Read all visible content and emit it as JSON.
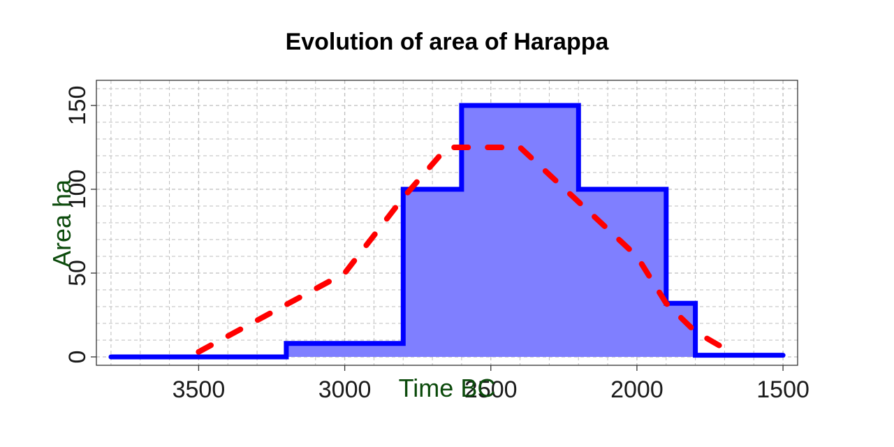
{
  "chart_data": {
    "type": "area",
    "title": "Evolution of area of Harappa",
    "xlabel": "Time BC",
    "ylabel": "Area ha",
    "x_reversed": true,
    "xlim": [
      3850,
      1450
    ],
    "ylim": [
      -5,
      165
    ],
    "xticks": [
      3500,
      3000,
      2500,
      2000,
      1500
    ],
    "yticks": [
      0,
      50,
      100,
      150
    ],
    "x_minor_step": 100,
    "y_minor_step": 10,
    "grid": true,
    "series": [
      {
        "style": "step-area",
        "color": "#0000ff",
        "fill": "#7f7fff",
        "x": [
          3800,
          3200,
          3200,
          2800,
          2800,
          2600,
          2600,
          2200,
          2200,
          1900,
          1900,
          1800,
          1800,
          1500
        ],
        "y": [
          0,
          0,
          8,
          8,
          100,
          100,
          150,
          150,
          100,
          100,
          32,
          32,
          1,
          1
        ]
      },
      {
        "style": "dashed-line",
        "color": "#ff0000",
        "x": [
          3500,
          3000,
          2800,
          2650,
          2400,
          2000,
          1900,
          1800,
          1700
        ],
        "y": [
          3,
          50,
          95,
          125,
          125,
          60,
          32,
          15,
          5
        ]
      }
    ]
  }
}
